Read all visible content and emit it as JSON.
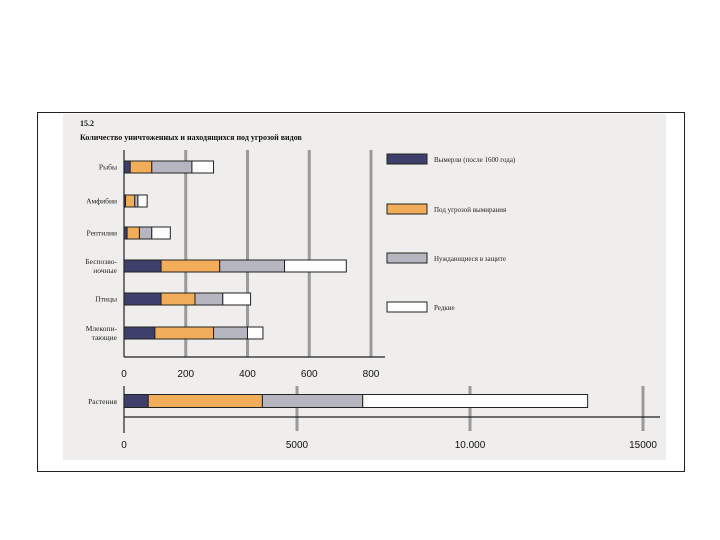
{
  "figure_number": "15.2",
  "colors": {
    "extinct": "#3f3f6b",
    "endangered": "#f2ad5a",
    "need_protection": "#b6b6c0",
    "rare": "#ffffff",
    "outline": "#222222",
    "gridline": "#9a9a9a"
  },
  "chart_data": [
    {
      "type": "bar",
      "orientation": "horizontal",
      "stacked": true,
      "title": "Количество уничтоженных и находящихся под угрозой видов",
      "categories": [
        "Рыбы",
        "Амфибии",
        "Рептилии",
        "Беспозвоночные",
        "Птицы",
        "Млекопитающие"
      ],
      "category_labels": [
        [
          "Рыбы"
        ],
        [
          "Амфибии"
        ],
        [
          "Рептилии"
        ],
        [
          "Беспозво-",
          "ночные"
        ],
        [
          "Птицы"
        ],
        [
          "Млекопи-",
          "тающие"
        ]
      ],
      "series": [
        {
          "name": "Вымерли (после 1600 года)",
          "color": "#3f3f6b",
          "values": [
            20,
            5,
            10,
            120,
            120,
            100
          ]
        },
        {
          "name": "Под угрозой вымирания",
          "color": "#f2ad5a",
          "values": [
            70,
            30,
            40,
            190,
            110,
            190
          ]
        },
        {
          "name": "Нуждающиеся в защите",
          "color": "#b6b6c0",
          "values": [
            130,
            10,
            40,
            210,
            90,
            110
          ]
        },
        {
          "name": "Редкие",
          "color": "#ffffff",
          "values": [
            70,
            30,
            60,
            200,
            90,
            50
          ]
        }
      ],
      "xticks": [
        "0",
        "200",
        "400",
        "600",
        "800"
      ],
      "xlim": [
        0,
        800
      ],
      "grid": true,
      "legend_position": "right"
    },
    {
      "type": "bar",
      "orientation": "horizontal",
      "stacked": true,
      "categories": [
        "Растения"
      ],
      "series": [
        {
          "name": "Вымерли (после 1600 года)",
          "color": "#3f3f6b",
          "values": [
            700
          ]
        },
        {
          "name": "Под угрозой вымирания",
          "color": "#f2ad5a",
          "values": [
            3300
          ]
        },
        {
          "name": "Нуждающиеся в защите",
          "color": "#b6b6c0",
          "values": [
            2900
          ]
        },
        {
          "name": "Редкие",
          "color": "#ffffff",
          "values": [
            6500
          ]
        }
      ],
      "xticks": [
        "0",
        "5000",
        "10.000",
        "15000"
      ],
      "xlim": [
        0,
        15000
      ],
      "grid": true
    }
  ]
}
